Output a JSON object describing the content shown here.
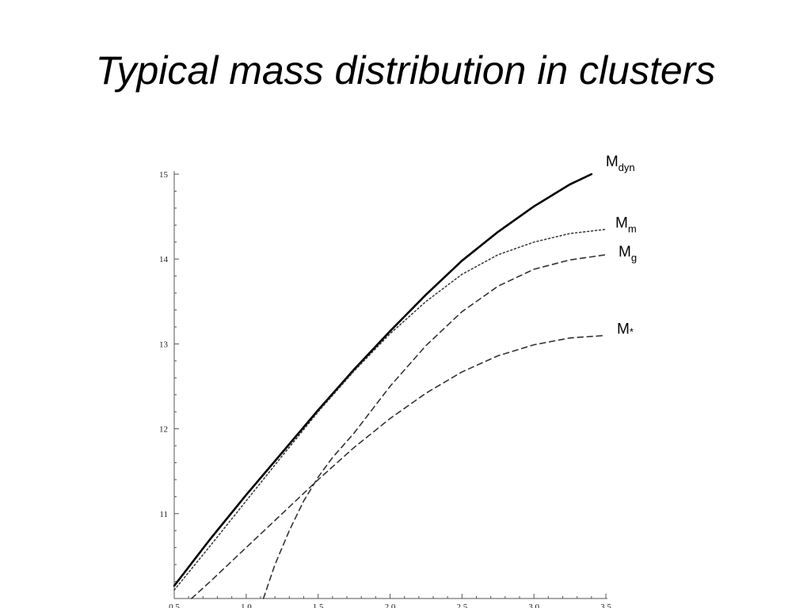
{
  "slide": {
    "title": "Typical mass distribution in clusters"
  },
  "chart_data": {
    "type": "line",
    "title": "",
    "xlabel": "",
    "ylabel": "",
    "xlim": [
      0.5,
      3.5
    ],
    "ylim": [
      10,
      15
    ],
    "x_ticks": [
      0.5,
      1.0,
      1.5,
      2.0,
      2.5,
      3.0,
      3.5
    ],
    "x_tick_labels": [
      "0.5",
      "1.0",
      "1.5",
      "2.0",
      "2.5",
      "3.0",
      "3.5"
    ],
    "y_ticks": [
      11,
      12,
      13,
      14,
      15
    ],
    "y_tick_labels": [
      "11",
      "12",
      "13",
      "14",
      "15"
    ],
    "grid": false,
    "series": [
      {
        "label_main": "M",
        "label_sub": "dyn",
        "style": "solid",
        "color": "#000000",
        "x": [
          0.5,
          0.75,
          1.0,
          1.25,
          1.5,
          1.75,
          2.0,
          2.25,
          2.5,
          2.75,
          3.0,
          3.25,
          3.4
        ],
        "y": [
          10.15,
          10.7,
          11.22,
          11.72,
          12.22,
          12.7,
          13.15,
          13.58,
          13.98,
          14.32,
          14.62,
          14.88,
          15.0
        ]
      },
      {
        "label_main": "M",
        "label_sub": "m",
        "style": "dotted",
        "color": "#333333",
        "x": [
          0.5,
          0.75,
          1.0,
          1.25,
          1.5,
          1.75,
          2.0,
          2.25,
          2.5,
          2.75,
          3.0,
          3.25,
          3.5
        ],
        "y": [
          10.1,
          10.62,
          11.15,
          11.68,
          12.2,
          12.68,
          13.12,
          13.5,
          13.82,
          14.05,
          14.2,
          14.3,
          14.35
        ]
      },
      {
        "label_main": "M",
        "label_sub": "g",
        "style": "dashed",
        "color": "#333333",
        "x": [
          1.12,
          1.2,
          1.3,
          1.4,
          1.5,
          1.6,
          1.75,
          2.0,
          2.25,
          2.5,
          2.75,
          3.0,
          3.25,
          3.5
        ],
        "y": [
          10.0,
          10.4,
          10.8,
          11.15,
          11.43,
          11.66,
          11.95,
          12.5,
          12.98,
          13.38,
          13.68,
          13.88,
          13.99,
          14.05
        ]
      },
      {
        "label_main": "M",
        "label_sub": "*",
        "style": "dashed",
        "color": "#333333",
        "x": [
          0.62,
          0.75,
          1.0,
          1.25,
          1.5,
          1.75,
          2.0,
          2.25,
          2.5,
          2.75,
          3.0,
          3.25,
          3.5
        ],
        "y": [
          10.0,
          10.2,
          10.6,
          11.0,
          11.4,
          11.78,
          12.12,
          12.42,
          12.67,
          12.86,
          12.99,
          13.07,
          13.1
        ]
      }
    ]
  }
}
